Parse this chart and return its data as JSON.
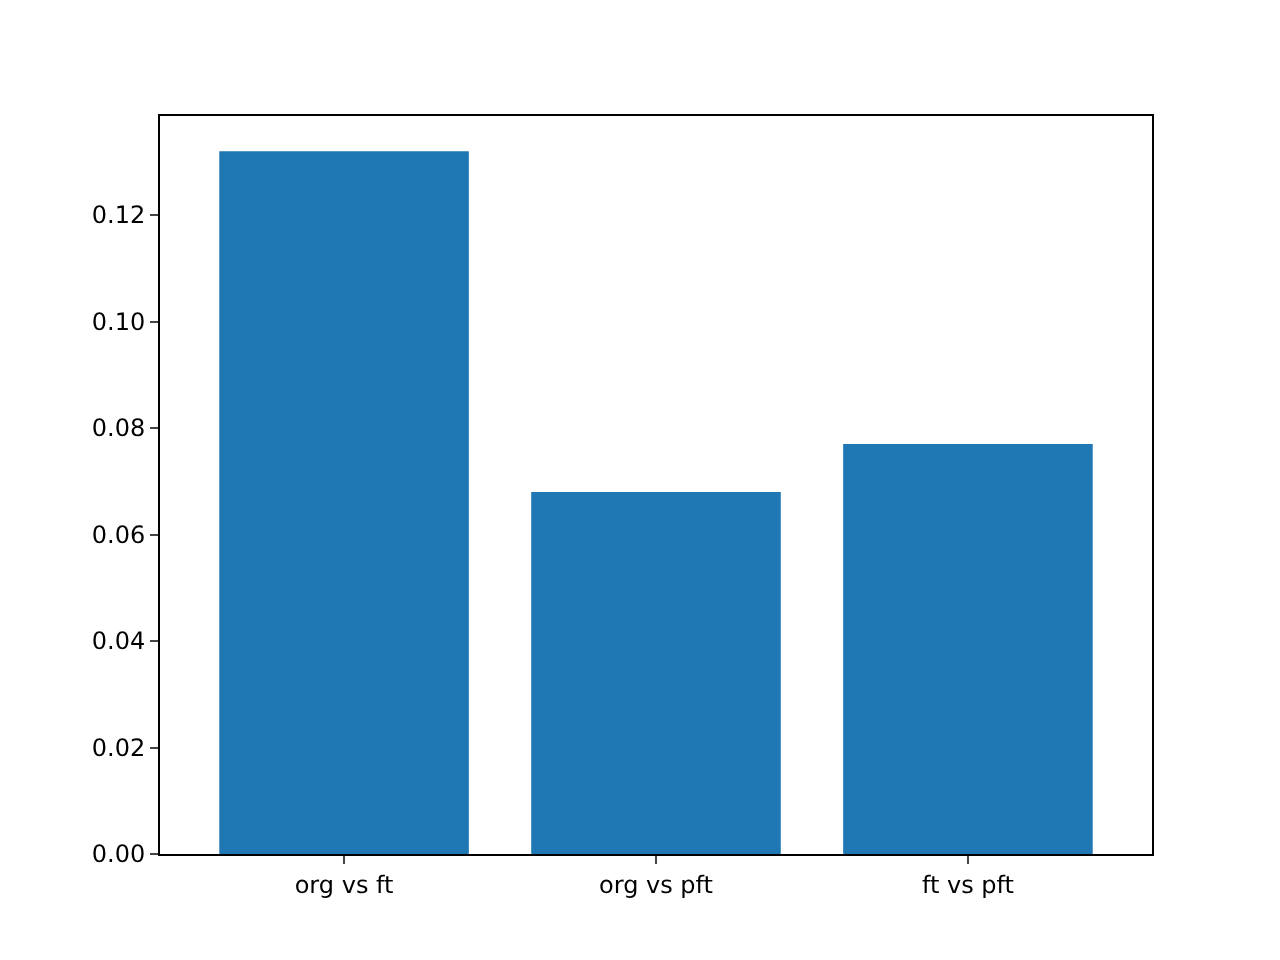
{
  "chart_data": {
    "type": "bar",
    "categories": [
      "org vs ft",
      "org vs pft",
      "ft vs pft"
    ],
    "values": [
      0.132,
      0.068,
      0.077
    ],
    "color": "#1f77b4",
    "ylim": [
      0,
      0.1386
    ],
    "yticks": [
      {
        "value": 0,
        "label": "0.00"
      },
      {
        "value": 0.02,
        "label": "0.02"
      },
      {
        "value": 0.04,
        "label": "0.04"
      },
      {
        "value": 0.06,
        "label": "0.06"
      },
      {
        "value": 0.08,
        "label": "0.08"
      },
      {
        "value": 0.1,
        "label": "0.10"
      },
      {
        "value": 0.12,
        "label": "0.12"
      }
    ]
  }
}
